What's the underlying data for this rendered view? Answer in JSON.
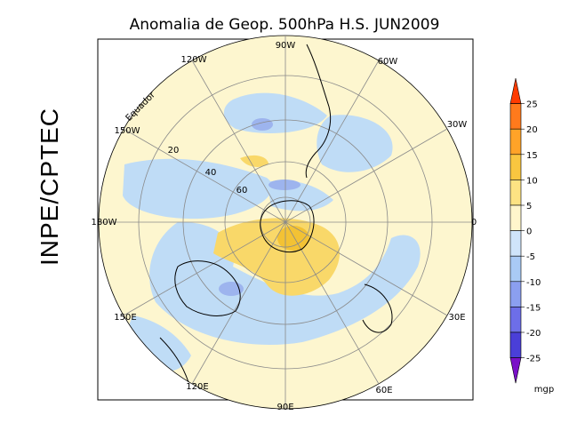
{
  "title": "Anomalia de Geop. 500hPa H.S. JUN2009",
  "side_label": "INPE/CPTEC",
  "equator_label": "Equador",
  "longitude_labels": {
    "w0": "90W",
    "w1": "60W",
    "w2": "30W",
    "w3": "0",
    "w4": "30E",
    "w5": "60E",
    "w6": "90E",
    "w7": "120E",
    "w8": "150E",
    "w9": "180W",
    "w10": "150W",
    "w11": "120W"
  },
  "latitude_labels": {
    "l20": "20",
    "l40": "40",
    "l60": "60"
  },
  "colorbar": {
    "unit": "mgp",
    "ticks": [
      "25",
      "20",
      "15",
      "10",
      "5",
      "0",
      "-5",
      "-10",
      "-15",
      "-20",
      "-25"
    ],
    "colors": [
      "#ff3b00",
      "#ff7a1c",
      "#ffa328",
      "#f9c640",
      "#fde383",
      "#fff6cc",
      "#cfe4fa",
      "#a9caf5",
      "#8b9ff0",
      "#6d6ee8",
      "#4a3fd8",
      "#7a10c8"
    ]
  },
  "colors": {
    "base": "#fdf6cf",
    "negative": "#bfdcf6",
    "negative_strong": "#9db4ee",
    "positive": "#f9d869",
    "positive_strong": "#f3c234",
    "grid": "#8a8a8a"
  }
}
